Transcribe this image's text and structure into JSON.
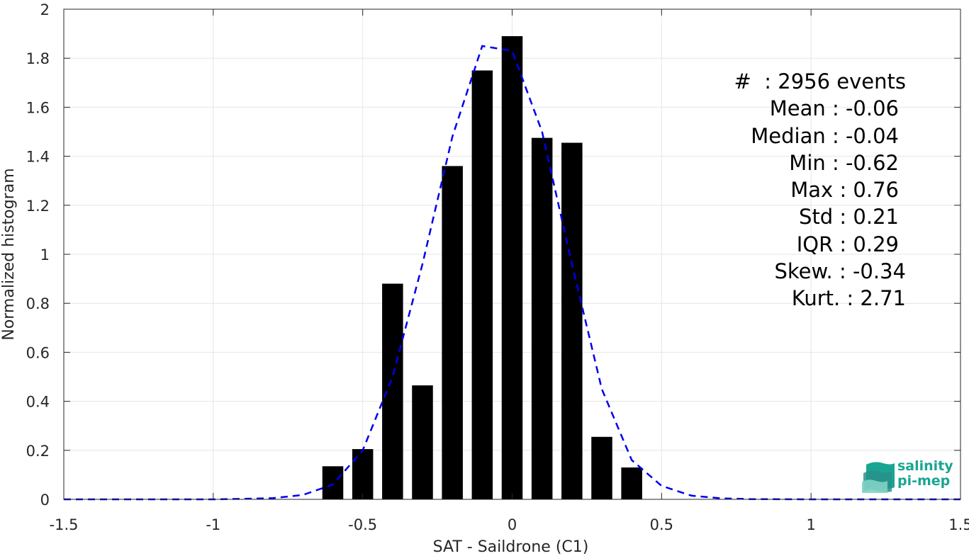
{
  "chart_data": {
    "type": "bar",
    "xlabel": "SAT - Saildrone (C1)",
    "ylabel": "Normalized histogram",
    "xlim": [
      -1.5,
      1.5
    ],
    "ylim": [
      0,
      2
    ],
    "grid": true,
    "x_ticks": [
      -1.5,
      -1,
      -0.5,
      0,
      0.5,
      1,
      1.5
    ],
    "x_tick_labels": [
      "-1.5",
      "-1",
      "-0.5",
      "0",
      "0.5",
      "1",
      "1.5"
    ],
    "y_ticks": [
      0,
      0.2,
      0.4,
      0.6,
      0.8,
      1,
      1.2,
      1.4,
      1.6,
      1.8,
      2
    ],
    "y_tick_labels": [
      "0",
      "0.2",
      "0.4",
      "0.6",
      "0.8",
      "1",
      "1.2",
      "1.4",
      "1.6",
      "1.8",
      "2"
    ],
    "bar_width": 0.07,
    "bars": {
      "x": [
        -0.6,
        -0.5,
        -0.4,
        -0.3,
        -0.2,
        -0.1,
        0.0,
        0.1,
        0.2,
        0.3,
        0.4
      ],
      "values": [
        0.135,
        0.205,
        0.88,
        0.465,
        1.36,
        1.75,
        1.89,
        1.475,
        1.455,
        0.255,
        0.13
      ],
      "color": "#000000"
    },
    "fit_curve": {
      "style": "dashed",
      "color": "#0000ee",
      "x": [
        -1.5,
        -1.0,
        -0.9,
        -0.8,
        -0.7,
        -0.6,
        -0.5,
        -0.4,
        -0.3,
        -0.2,
        -0.1,
        0.0,
        0.1,
        0.2,
        0.3,
        0.4,
        0.5,
        0.6,
        0.7,
        0.8,
        1.0,
        1.5
      ],
      "y": [
        0.0,
        0.0,
        0.002,
        0.005,
        0.018,
        0.06,
        0.2,
        0.5,
        0.96,
        1.48,
        1.85,
        1.83,
        1.5,
        0.96,
        0.45,
        0.16,
        0.055,
        0.015,
        0.004,
        0.001,
        0.0,
        0.0
      ]
    },
    "annotations": [
      "#  : 2956 events",
      "Mean : -0.06",
      "Median : -0.04",
      "Min : -0.62",
      "Max : 0.76",
      "Std : 0.21",
      "IQR : 0.29",
      "Skew. : -0.34",
      "Kurt. : 2.71"
    ]
  },
  "logo": {
    "line1": "salinity",
    "line2": "pi-mep",
    "colors": [
      "#1aa593",
      "#2a8f8c",
      "#7fd3c3"
    ]
  }
}
